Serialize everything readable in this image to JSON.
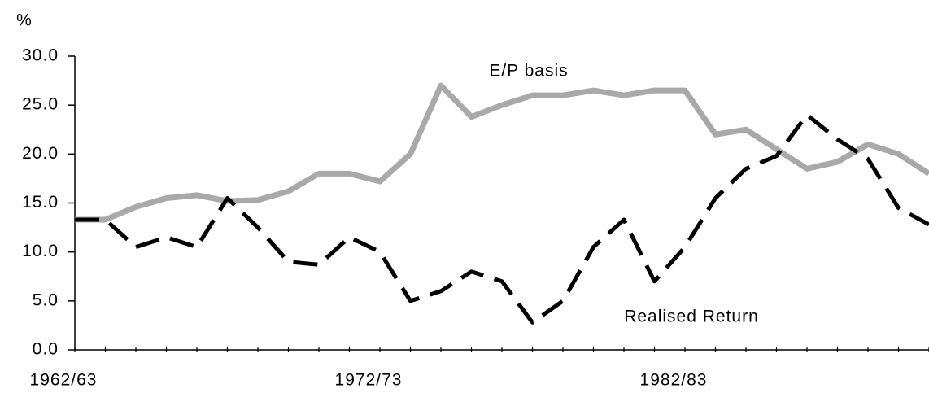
{
  "chart_data": {
    "type": "line",
    "y_unit": "%",
    "categories": [
      "1962/63",
      null,
      null,
      null,
      null,
      null,
      null,
      null,
      null,
      null,
      "1972/73",
      null,
      null,
      null,
      null,
      null,
      null,
      null,
      null,
      null,
      "1982/83",
      null,
      null,
      null,
      null,
      null,
      null,
      null,
      null
    ],
    "series": [
      {
        "name": "E/P basis",
        "color": "#a9a9a9",
        "dashed": false,
        "values": [
          13.3,
          13.3,
          14.6,
          15.5,
          15.8,
          15.2,
          15.3,
          16.2,
          18.0,
          18.0,
          17.2,
          20.0,
          27.0,
          23.8,
          25.0,
          26.0,
          26.0,
          26.5,
          26.0,
          26.5,
          26.5,
          22.0,
          22.5,
          20.5,
          18.5,
          19.2,
          21.0,
          20.0,
          18.0
        ]
      },
      {
        "name": "Realised Return",
        "color": "#000000",
        "dashed": true,
        "values": [
          13.3,
          13.3,
          10.5,
          11.5,
          10.5,
          15.5,
          12.5,
          9.0,
          8.7,
          11.5,
          10.0,
          5.0,
          6.0,
          8.0,
          7.0,
          2.8,
          5.0,
          10.5,
          13.3,
          7.0,
          10.5,
          15.5,
          18.5,
          19.8,
          24.0,
          21.5,
          19.5,
          14.5,
          12.8
        ]
      }
    ],
    "ylim": [
      0,
      30
    ],
    "yticks": [
      {
        "value": 0,
        "label": "0.0"
      },
      {
        "value": 5,
        "label": "5.0"
      },
      {
        "value": 10,
        "label": "10.0"
      },
      {
        "value": 15,
        "label": "15.0"
      },
      {
        "value": 20,
        "label": "20.0"
      },
      {
        "value": 25,
        "label": "25.0"
      },
      {
        "value": 30,
        "label": "30.0"
      }
    ],
    "grid": false
  }
}
